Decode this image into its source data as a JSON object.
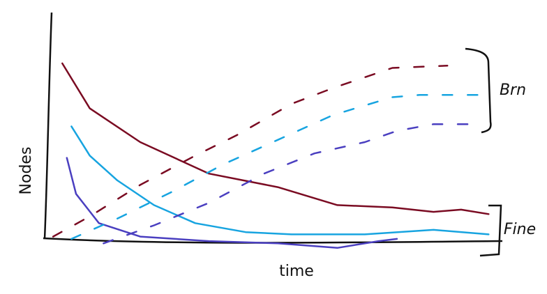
{
  "chart_data": {
    "type": "line",
    "ylabel": "Nodes",
    "xlabel": "time",
    "annotations": [
      "Brn",
      "Fine"
    ],
    "xlim": [
      0,
      100
    ],
    "ylim": [
      -5,
      100
    ],
    "series": [
      {
        "color": "#7a0b22",
        "dashed": false,
        "x": [
          4,
          10,
          21,
          36,
          51,
          64,
          76,
          85,
          91,
          97
        ],
        "values": [
          78,
          58,
          43,
          29,
          23,
          15,
          14,
          12,
          13,
          11
        ]
      },
      {
        "color": "#17a4e0",
        "dashed": false,
        "x": [
          6,
          10,
          16,
          24,
          33,
          44,
          54,
          70,
          85,
          97
        ],
        "values": [
          50,
          37,
          26,
          15,
          7,
          3,
          2,
          2,
          4,
          2
        ]
      },
      {
        "color": "#4a3fc0",
        "dashed": false,
        "x": [
          5,
          7,
          12,
          21,
          36,
          51,
          64,
          73,
          77
        ],
        "values": [
          36,
          20,
          7,
          1,
          -1,
          -2,
          -4,
          -1,
          0
        ]
      },
      {
        "color": "#7a0b22",
        "dashed": true,
        "x": [
          2,
          10,
          21,
          33,
          42,
          54,
          63,
          76,
          88
        ],
        "values": [
          1,
          10,
          24,
          37,
          46,
          60,
          67,
          76,
          77
        ]
      },
      {
        "color": "#17a4e0",
        "dashed": true,
        "x": [
          6,
          16,
          28,
          39,
          51,
          63,
          76,
          82,
          95
        ],
        "values": [
          0,
          9,
          21,
          33,
          44,
          55,
          63,
          64,
          64
        ]
      },
      {
        "color": "#4a3fc0",
        "dashed": true,
        "x": [
          13,
          24,
          36,
          48,
          59,
          70,
          77,
          85,
          94
        ],
        "values": [
          -2,
          6,
          16,
          29,
          38,
          43,
          48,
          51,
          51
        ]
      }
    ]
  }
}
